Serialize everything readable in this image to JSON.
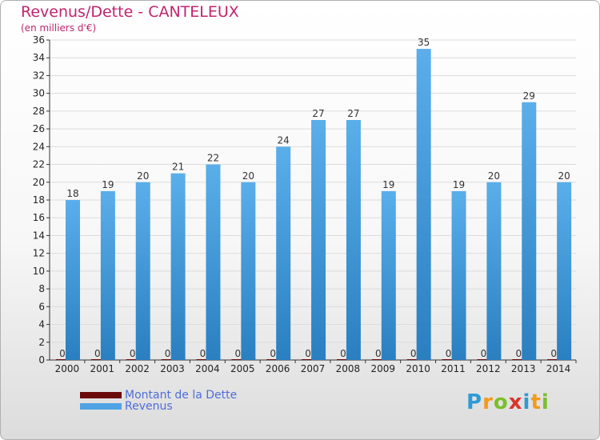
{
  "title": "Revenus/Dette - CANTELEUX",
  "subtitle": "(en milliers d'€)",
  "brand": {
    "text": "Proxiti",
    "letters": [
      "P",
      "r",
      "o",
      "x",
      "i",
      "t",
      "i"
    ],
    "colors": [
      "#2e9bd6",
      "#f39a1e",
      "#7bbf2b",
      "#d9332a",
      "#2e9bd6",
      "#f39a1e",
      "#7bbf2b"
    ]
  },
  "chart_data": {
    "type": "bar",
    "categories": [
      "2000",
      "2001",
      "2002",
      "2003",
      "2004",
      "2005",
      "2006",
      "2007",
      "2008",
      "2009",
      "2010",
      "2011",
      "2012",
      "2013",
      "2014"
    ],
    "series": [
      {
        "name": "Montant de la Dette",
        "color": "#6b0a0a",
        "values": [
          0,
          0,
          0,
          0,
          0,
          0,
          0,
          0,
          0,
          0,
          0,
          0,
          0,
          0,
          0
        ]
      },
      {
        "name": "Revenus",
        "color": "#4fa3e3",
        "values": [
          18,
          19,
          20,
          21,
          22,
          20,
          24,
          27,
          27,
          19,
          35,
          19,
          20,
          29,
          20
        ]
      }
    ],
    "ylim": [
      0,
      36
    ],
    "yticks": [
      0,
      2,
      4,
      6,
      8,
      10,
      12,
      14,
      16,
      18,
      20,
      22,
      24,
      26,
      28,
      30,
      32,
      34,
      36
    ],
    "grid": true,
    "legend": "bottom-left"
  }
}
